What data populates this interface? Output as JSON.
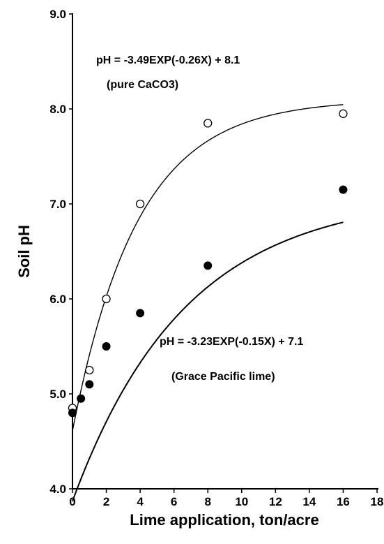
{
  "chart_data": {
    "type": "scatter",
    "title": "",
    "xlabel": "Lime application, ton/acre",
    "ylabel": "Soil pH",
    "xlim": [
      0,
      18
    ],
    "ylim": [
      4.0,
      9.0
    ],
    "x_ticks": [
      "0",
      "2",
      "4",
      "6",
      "8",
      "10",
      "12",
      "14",
      "16",
      "18"
    ],
    "y_ticks": [
      "4.0",
      "5.0",
      "6.0",
      "7.0",
      "8.0",
      "9.0"
    ],
    "grid": false,
    "series": [
      {
        "marker": "open-circle",
        "x": [
          0,
          1,
          2,
          4,
          8,
          16
        ],
        "y": [
          4.85,
          5.25,
          6.0,
          7.0,
          7.85,
          7.95
        ],
        "fit": {
          "a": -3.49,
          "b": -0.26,
          "c": 8.1
        }
      },
      {
        "marker": "filled-circle",
        "x": [
          0,
          0.5,
          1,
          2,
          4,
          8,
          16
        ],
        "y": [
          4.8,
          4.95,
          5.1,
          5.5,
          5.85,
          6.35,
          7.15
        ],
        "fit": {
          "a": -3.23,
          "b": -0.15,
          "c": 7.1
        }
      }
    ],
    "annotations": [
      "pH = -3.49EXP(-0.26X) + 8.1",
      "(pure CaCO3)",
      "pH = -3.23EXP(-0.15X) + 7.1",
      "(Grace Pacific lime)"
    ]
  }
}
